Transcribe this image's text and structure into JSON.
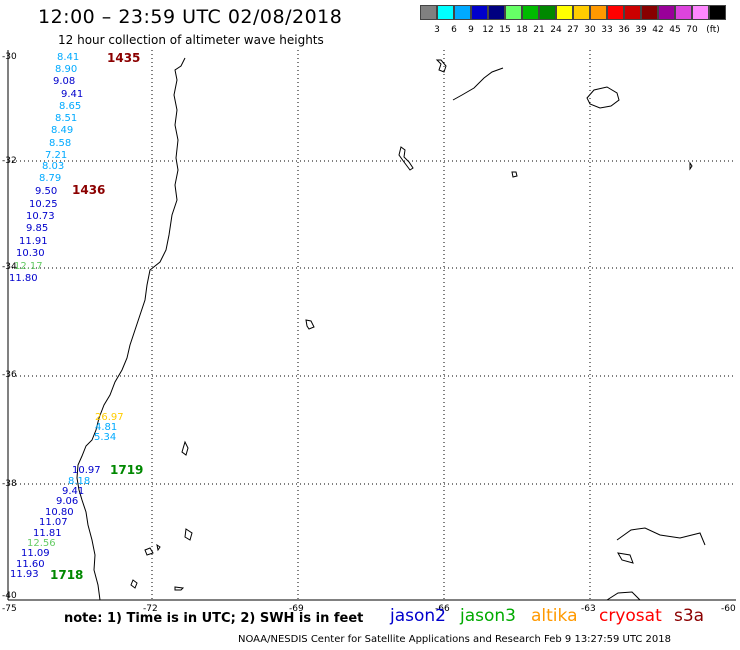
{
  "header": {
    "title": "12:00 – 23:59 UTC 02/08/2018",
    "subtitle": "12 hour collection of altimeter wave heights"
  },
  "legend": {
    "unit": "(ft)",
    "bins": [
      {
        "label": "",
        "color": "#808080"
      },
      {
        "label": "3",
        "color": "#00ffff"
      },
      {
        "label": "6",
        "color": "#00aaff"
      },
      {
        "label": "9",
        "color": "#0000cc"
      },
      {
        "label": "12",
        "color": "#000080"
      },
      {
        "label": "15",
        "color": "#66ff66"
      },
      {
        "label": "18",
        "color": "#00bb00"
      },
      {
        "label": "21",
        "color": "#008800"
      },
      {
        "label": "24",
        "color": "#ffff00"
      },
      {
        "label": "27",
        "color": "#ffcc00"
      },
      {
        "label": "30",
        "color": "#ff9900"
      },
      {
        "label": "33",
        "color": "#ff0000"
      },
      {
        "label": "36",
        "color": "#cc0000"
      },
      {
        "label": "39",
        "color": "#880000"
      },
      {
        "label": "42",
        "color": "#990099"
      },
      {
        "label": "45",
        "color": "#dd44dd"
      },
      {
        "label": "70",
        "color": "#ff88ff"
      },
      {
        "label": "",
        "color": "#000000"
      }
    ]
  },
  "axes": {
    "lat_labels": [
      "-30",
      "-32",
      "-34",
      "-36",
      "-38",
      "-40"
    ],
    "lon_labels": [
      "-75",
      "-72",
      "-69",
      "-66",
      "-63",
      "-60"
    ]
  },
  "passes": [
    {
      "time": "1435",
      "color": "#8b0000"
    },
    {
      "time": "1436",
      "color": "#8b0000"
    },
    {
      "time": "1719",
      "color": "#008800"
    },
    {
      "time": "1718",
      "color": "#008800"
    }
  ],
  "wave_heights": [
    {
      "value": "8.41",
      "color": "#00aaff"
    },
    {
      "value": "8.90",
      "color": "#00aaff"
    },
    {
      "value": "9.08",
      "color": "#0000cc"
    },
    {
      "value": "9.41",
      "color": "#0000cc"
    },
    {
      "value": "8.65",
      "color": "#00aaff"
    },
    {
      "value": "8.51",
      "color": "#00aaff"
    },
    {
      "value": "8.49",
      "color": "#00aaff"
    },
    {
      "value": "8.58",
      "color": "#00aaff"
    },
    {
      "value": "7.21",
      "color": "#00aaff"
    },
    {
      "value": "8.03",
      "color": "#00aaff"
    },
    {
      "value": "8.79",
      "color": "#00aaff"
    },
    {
      "value": "9.50",
      "color": "#0000cc"
    },
    {
      "value": "10.25",
      "color": "#0000cc"
    },
    {
      "value": "10.73",
      "color": "#0000cc"
    },
    {
      "value": "9.85",
      "color": "#0000cc"
    },
    {
      "value": "11.91",
      "color": "#0000cc"
    },
    {
      "value": "10.30",
      "color": "#0000cc"
    },
    {
      "value": "12.17",
      "color": "#66cc66"
    },
    {
      "value": "11.80",
      "color": "#0000cc"
    },
    {
      "value": "26.97",
      "color": "#ffcc00"
    },
    {
      "value": "4.81",
      "color": "#00aaff"
    },
    {
      "value": "5.34",
      "color": "#00aaff"
    },
    {
      "value": "10.97",
      "color": "#0000cc"
    },
    {
      "value": "8.18",
      "color": "#00aaff"
    },
    {
      "value": "9.41",
      "color": "#0000cc"
    },
    {
      "value": "9.06",
      "color": "#0000cc"
    },
    {
      "value": "10.80",
      "color": "#0000cc"
    },
    {
      "value": "11.07",
      "color": "#0000cc"
    },
    {
      "value": "11.81",
      "color": "#0000cc"
    },
    {
      "value": "12.56",
      "color": "#66cc66"
    },
    {
      "value": "11.09",
      "color": "#0000cc"
    },
    {
      "value": "11.60",
      "color": "#0000cc"
    },
    {
      "value": "11.93",
      "color": "#0000cc"
    }
  ],
  "footer": {
    "note": "note:  1) Time is in UTC;  2) SWH is in feet",
    "credit": "NOAA/NESDIS Center for Satellite Applications and Research   Feb  9 13:27:59 UTC 2018",
    "satellites": [
      {
        "name": "jason2",
        "color": "#0000cc"
      },
      {
        "name": "jason3",
        "color": "#00aa00"
      },
      {
        "name": "altika",
        "color": "#ff9900"
      },
      {
        "name": "cryosat",
        "color": "#ff0000"
      },
      {
        "name": "s3a",
        "color": "#8b0000"
      }
    ]
  }
}
